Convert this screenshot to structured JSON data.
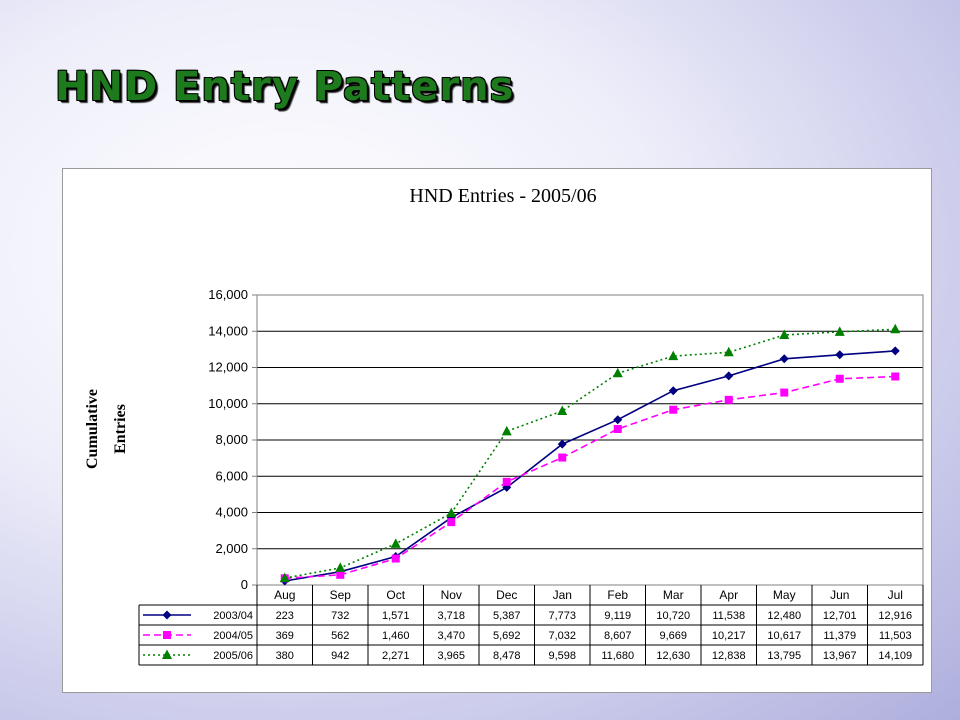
{
  "slide": {
    "title": "HND Entry Patterns"
  },
  "chart_data": {
    "type": "line",
    "title": "HND Entries - 2005/06",
    "ylabel_lines": [
      "Cumulative",
      "Entries"
    ],
    "xlabel": "",
    "categories": [
      "Aug",
      "Sep",
      "Oct",
      "Nov",
      "Dec",
      "Jan",
      "Feb",
      "Mar",
      "Apr",
      "May",
      "Jun",
      "Jul"
    ],
    "ylim": [
      0,
      16000
    ],
    "yticks": [
      "0",
      "2,000",
      "4,000",
      "6,000",
      "8,000",
      "10,000",
      "12,000",
      "14,000",
      "16,000"
    ],
    "grid": true,
    "legend": "data-table",
    "series": [
      {
        "name": "2003/04",
        "color": "#000080",
        "marker": "diamond",
        "line": "solid",
        "values": [
          223,
          732,
          1571,
          3718,
          5387,
          7773,
          9119,
          10720,
          11538,
          12480,
          12701,
          12916
        ],
        "labels": [
          "223",
          "732",
          "1,571",
          "3,718",
          "5,387",
          "7,773",
          "9,119",
          "10,720",
          "11,538",
          "12,480",
          "12,701",
          "12,916"
        ]
      },
      {
        "name": "2004/05",
        "color": "#ff00ff",
        "marker": "square",
        "line": "dash",
        "values": [
          369,
          562,
          1460,
          3470,
          5692,
          7032,
          8607,
          9669,
          10217,
          10617,
          11379,
          11503
        ],
        "labels": [
          "369",
          "562",
          "1,460",
          "3,470",
          "5,692",
          "7,032",
          "8,607",
          "9,669",
          "10,217",
          "10,617",
          "11,379",
          "11,503"
        ]
      },
      {
        "name": "2005/06",
        "color": "#008000",
        "marker": "triangle",
        "line": "dot",
        "values": [
          380,
          942,
          2271,
          3965,
          8478,
          9598,
          11680,
          12630,
          12838,
          13795,
          13967,
          14109
        ],
        "labels": [
          "380",
          "942",
          "2,271",
          "3,965",
          "8,478",
          "9,598",
          "11,680",
          "12,630",
          "12,838",
          "13,795",
          "13,967",
          "14,109"
        ]
      }
    ]
  }
}
